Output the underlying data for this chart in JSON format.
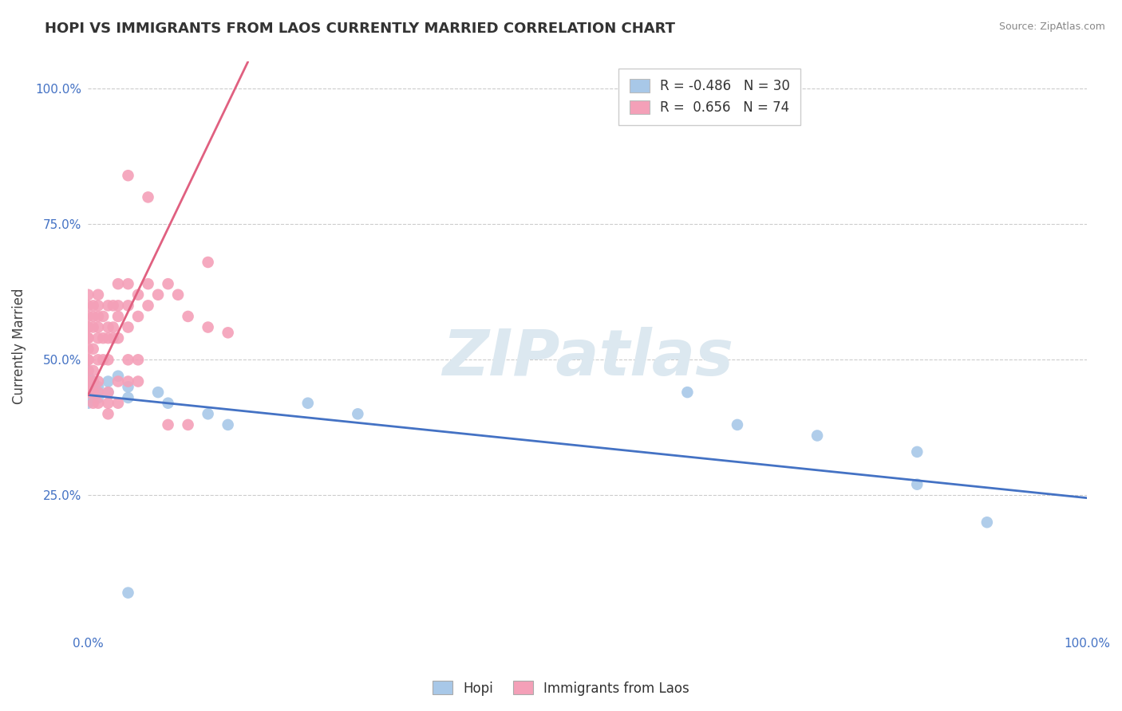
{
  "title": "HOPI VS IMMIGRANTS FROM LAOS CURRENTLY MARRIED CORRELATION CHART",
  "source": "Source: ZipAtlas.com",
  "ylabel": "Currently Married",
  "xlim": [
    0.0,
    1.0
  ],
  "ylim": [
    0.0,
    1.05
  ],
  "hopi_R": -0.486,
  "hopi_N": 30,
  "laos_R": 0.656,
  "laos_N": 74,
  "hopi_color": "#a8c8e8",
  "laos_color": "#f4a0b8",
  "hopi_line_color": "#4472c4",
  "laos_line_color": "#e06080",
  "watermark_text": "ZIPatlas",
  "title_fontsize": 13,
  "hopi_line_x0": 0.0,
  "hopi_line_y0": 0.435,
  "hopi_line_x1": 1.0,
  "hopi_line_y1": 0.245,
  "laos_line_x0": 0.0,
  "laos_line_y0": 0.435,
  "laos_line_x1": 0.16,
  "laos_line_y1": 1.05,
  "hopi_points": [
    [
      0.0,
      0.44
    ],
    [
      0.0,
      0.45
    ],
    [
      0.0,
      0.43
    ],
    [
      0.0,
      0.47
    ],
    [
      0.0,
      0.46
    ],
    [
      0.0,
      0.42
    ],
    [
      0.0,
      0.48
    ],
    [
      0.005,
      0.44
    ],
    [
      0.005,
      0.46
    ],
    [
      0.01,
      0.45
    ],
    [
      0.01,
      0.43
    ],
    [
      0.01,
      0.44
    ],
    [
      0.02,
      0.46
    ],
    [
      0.02,
      0.44
    ],
    [
      0.03,
      0.47
    ],
    [
      0.04,
      0.45
    ],
    [
      0.04,
      0.43
    ],
    [
      0.07,
      0.44
    ],
    [
      0.08,
      0.42
    ],
    [
      0.12,
      0.4
    ],
    [
      0.14,
      0.38
    ],
    [
      0.22,
      0.42
    ],
    [
      0.27,
      0.4
    ],
    [
      0.04,
      0.07
    ],
    [
      0.6,
      0.44
    ],
    [
      0.65,
      0.38
    ],
    [
      0.73,
      0.36
    ],
    [
      0.83,
      0.33
    ],
    [
      0.83,
      0.27
    ],
    [
      0.9,
      0.2
    ]
  ],
  "laos_points": [
    [
      0.0,
      0.44
    ],
    [
      0.0,
      0.46
    ],
    [
      0.0,
      0.48
    ],
    [
      0.0,
      0.5
    ],
    [
      0.0,
      0.52
    ],
    [
      0.0,
      0.54
    ],
    [
      0.0,
      0.56
    ],
    [
      0.0,
      0.58
    ],
    [
      0.0,
      0.6
    ],
    [
      0.0,
      0.62
    ],
    [
      0.0,
      0.44
    ],
    [
      0.0,
      0.46
    ],
    [
      0.0,
      0.5
    ],
    [
      0.0,
      0.54
    ],
    [
      0.0,
      0.56
    ],
    [
      0.005,
      0.44
    ],
    [
      0.005,
      0.46
    ],
    [
      0.005,
      0.48
    ],
    [
      0.005,
      0.52
    ],
    [
      0.005,
      0.56
    ],
    [
      0.005,
      0.58
    ],
    [
      0.005,
      0.6
    ],
    [
      0.005,
      0.44
    ],
    [
      0.005,
      0.42
    ],
    [
      0.01,
      0.46
    ],
    [
      0.01,
      0.5
    ],
    [
      0.01,
      0.54
    ],
    [
      0.01,
      0.56
    ],
    [
      0.01,
      0.58
    ],
    [
      0.01,
      0.6
    ],
    [
      0.01,
      0.62
    ],
    [
      0.01,
      0.44
    ],
    [
      0.01,
      0.42
    ],
    [
      0.015,
      0.5
    ],
    [
      0.015,
      0.54
    ],
    [
      0.015,
      0.58
    ],
    [
      0.02,
      0.5
    ],
    [
      0.02,
      0.54
    ],
    [
      0.02,
      0.56
    ],
    [
      0.02,
      0.6
    ],
    [
      0.02,
      0.44
    ],
    [
      0.02,
      0.42
    ],
    [
      0.02,
      0.4
    ],
    [
      0.025,
      0.54
    ],
    [
      0.025,
      0.56
    ],
    [
      0.025,
      0.6
    ],
    [
      0.03,
      0.54
    ],
    [
      0.03,
      0.58
    ],
    [
      0.03,
      0.6
    ],
    [
      0.03,
      0.64
    ],
    [
      0.03,
      0.46
    ],
    [
      0.03,
      0.42
    ],
    [
      0.04,
      0.56
    ],
    [
      0.04,
      0.6
    ],
    [
      0.04,
      0.64
    ],
    [
      0.04,
      0.5
    ],
    [
      0.04,
      0.46
    ],
    [
      0.05,
      0.62
    ],
    [
      0.05,
      0.58
    ],
    [
      0.05,
      0.5
    ],
    [
      0.05,
      0.46
    ],
    [
      0.06,
      0.64
    ],
    [
      0.06,
      0.6
    ],
    [
      0.07,
      0.62
    ],
    [
      0.08,
      0.64
    ],
    [
      0.09,
      0.62
    ],
    [
      0.1,
      0.58
    ],
    [
      0.12,
      0.56
    ],
    [
      0.12,
      0.68
    ],
    [
      0.14,
      0.55
    ],
    [
      0.08,
      0.38
    ],
    [
      0.1,
      0.38
    ],
    [
      0.06,
      0.8
    ],
    [
      0.04,
      0.84
    ]
  ]
}
